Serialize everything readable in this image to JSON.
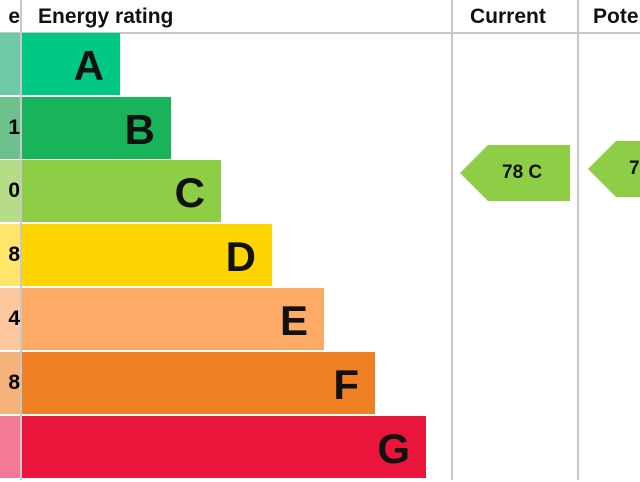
{
  "chart_data": {
    "type": "bar",
    "headers": {
      "score": "e",
      "rating": "Energy rating",
      "current": "Current",
      "potential": "Pote"
    },
    "categories": [
      "A",
      "B",
      "C",
      "D",
      "E",
      "F",
      "G"
    ],
    "score_fragments": [
      "",
      "1",
      "0",
      "8",
      "4",
      "8",
      ""
    ],
    "colors": [
      "#00c781",
      "#19b459",
      "#8dce46",
      "#ffd500",
      "#fcaa65",
      "#ef8023",
      "#e9153b"
    ],
    "score_colors": [
      "#6fc9a6",
      "#6dbf8c",
      "#b5dc86",
      "#ffe66b",
      "#fdc8a0",
      "#f5b27a",
      "#f27a97"
    ],
    "current": {
      "label": "78 C",
      "value": 78,
      "band": "C"
    },
    "potential": {
      "label": "7",
      "band": "C"
    }
  }
}
